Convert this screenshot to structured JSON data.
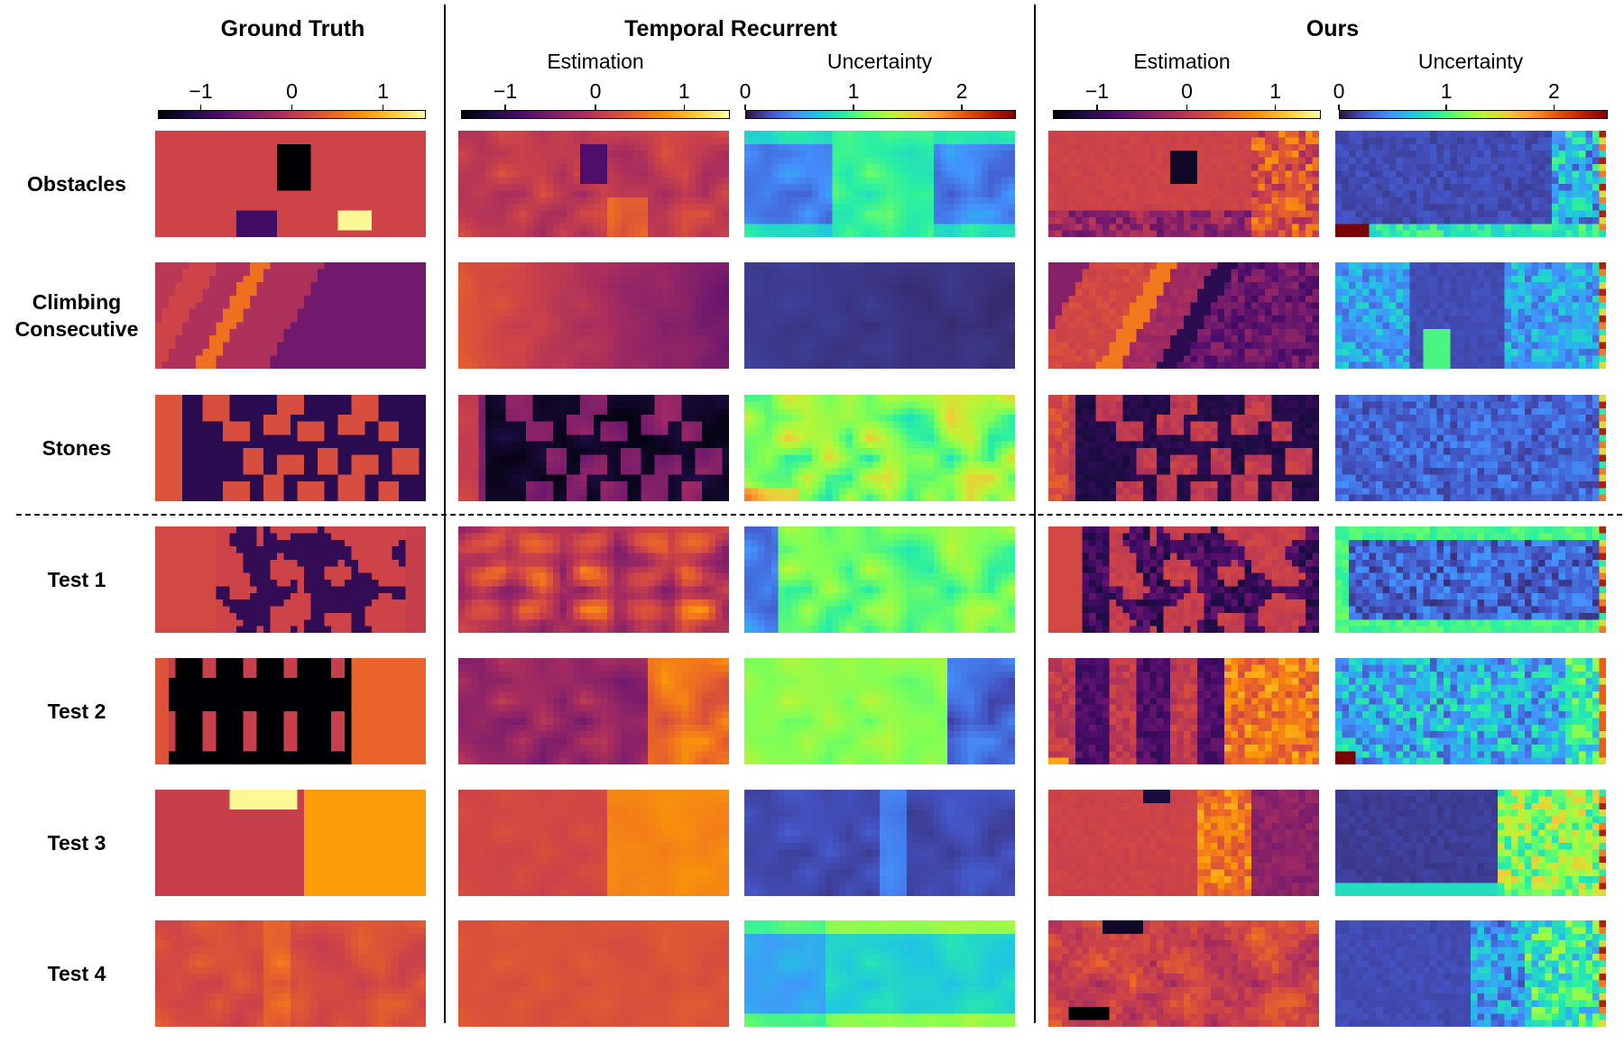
{
  "groups": {
    "ground_truth": "Ground Truth",
    "temporal_recurrent": "Temporal Recurrent",
    "ours": "Ours"
  },
  "subtitles": {
    "tr_estimation": "Estimation",
    "tr_uncertainty": "Uncertainty",
    "ours_estimation": "Estimation",
    "ours_uncertainty": "Uncertainty"
  },
  "colorbars": {
    "estimation": {
      "ticks": [
        "−1",
        "0",
        "1"
      ],
      "range": [
        -1.5,
        1.5
      ],
      "colormap": "inferno"
    },
    "uncertainty": {
      "ticks": [
        "0",
        "1",
        "2"
      ],
      "range": [
        0,
        2.5
      ],
      "colormap": "turbo"
    }
  },
  "rows": [
    {
      "label": [
        "Obstacles"
      ]
    },
    {
      "label": [
        "Climbing",
        "Consecutive"
      ]
    },
    {
      "label": [
        "Stones"
      ]
    },
    {
      "label": [
        "Test 1"
      ]
    },
    {
      "label": [
        "Test 2"
      ]
    },
    {
      "label": [
        "Test 3"
      ]
    },
    {
      "label": [
        "Test 4"
      ]
    }
  ]
}
